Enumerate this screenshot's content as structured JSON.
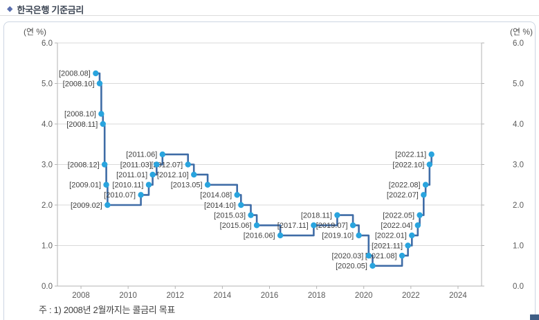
{
  "header": {
    "bullet": "◆",
    "title": "한국은행 기준금리"
  },
  "panel": {
    "unit_left": "(연 %)",
    "unit_right": "(연 %)",
    "footnote": "주 : 1) 2008년 2월까지는 콜금리 목표"
  },
  "colors": {
    "line": "#3f6ca6",
    "marker": "#29a4de",
    "grid": "#d9d9d9",
    "axis": "#b3b3b3",
    "tick_text": "#595959",
    "point_label": "#3f3f3f"
  },
  "chart_data": {
    "type": "line",
    "step": true,
    "title": "한국은행 기준금리",
    "ylabel": "(연 %)",
    "ylim": [
      0.0,
      6.0
    ],
    "yticks": [
      "6.0",
      "5.0",
      "4.0",
      "3.0",
      "2.0",
      "1.0",
      "0.0"
    ],
    "ytick_values": [
      6.0,
      5.0,
      4.0,
      3.0,
      2.0,
      1.0,
      0.0
    ],
    "x_range_years": [
      2007,
      2025
    ],
    "xticks": [
      2008,
      2010,
      2012,
      2014,
      2016,
      2018,
      2020,
      2022,
      2024
    ],
    "grid": true,
    "legend": "none",
    "series": [
      {
        "name": "기준금리",
        "points": [
          {
            "label": "[2008.08]",
            "year": 2008,
            "month": 8,
            "rate": 5.25
          },
          {
            "label": "[2008.10]",
            "year": 2008,
            "month": 10,
            "rate": 5.0
          },
          {
            "label": "[2008.10]",
            "year": 2008,
            "month": 10,
            "rate": 4.25
          },
          {
            "label": "[2008.11]",
            "year": 2008,
            "month": 11,
            "rate": 4.0
          },
          {
            "label": "[2008.12]",
            "year": 2008,
            "month": 12,
            "rate": 3.0
          },
          {
            "label": "[2009.01]",
            "year": 2009,
            "month": 1,
            "rate": 2.5
          },
          {
            "label": "[2009.02]",
            "year": 2009,
            "month": 2,
            "rate": 2.0
          },
          {
            "label": "[2010.07]",
            "year": 2010,
            "month": 7,
            "rate": 2.25
          },
          {
            "label": "[2010.11]",
            "year": 2010,
            "month": 11,
            "rate": 2.5
          },
          {
            "label": "[2011.01]",
            "year": 2011,
            "month": 1,
            "rate": 2.75
          },
          {
            "label": "[2011.03]",
            "year": 2011,
            "month": 3,
            "rate": 3.0
          },
          {
            "label": "[2011.06]",
            "year": 2011,
            "month": 6,
            "rate": 3.25
          },
          {
            "label": "[2012.07]",
            "year": 2012,
            "month": 7,
            "rate": 3.0
          },
          {
            "label": "[2012.10]",
            "year": 2012,
            "month": 10,
            "rate": 2.75
          },
          {
            "label": "[2013.05]",
            "year": 2013,
            "month": 5,
            "rate": 2.5
          },
          {
            "label": "[2014.08]",
            "year": 2014,
            "month": 8,
            "rate": 2.25
          },
          {
            "label": "[2014.10]",
            "year": 2014,
            "month": 10,
            "rate": 2.0
          },
          {
            "label": "[2015.03]",
            "year": 2015,
            "month": 3,
            "rate": 1.75
          },
          {
            "label": "[2015.06]",
            "year": 2015,
            "month": 6,
            "rate": 1.5
          },
          {
            "label": "[2016.06]",
            "year": 2016,
            "month": 6,
            "rate": 1.25
          },
          {
            "label": "[2017.11]",
            "year": 2017,
            "month": 11,
            "rate": 1.5
          },
          {
            "label": "[2018.11]",
            "year": 2018,
            "month": 11,
            "rate": 1.75
          },
          {
            "label": "[2019.07]",
            "year": 2019,
            "month": 7,
            "rate": 1.5
          },
          {
            "label": "[2019.10]",
            "year": 2019,
            "month": 10,
            "rate": 1.25
          },
          {
            "label": "[2020.03]",
            "year": 2020,
            "month": 3,
            "rate": 0.75
          },
          {
            "label": "[2020.05]",
            "year": 2020,
            "month": 5,
            "rate": 0.5
          },
          {
            "label": "[2021.08]",
            "year": 2021,
            "month": 8,
            "rate": 0.75
          },
          {
            "label": "[2021.11]",
            "year": 2021,
            "month": 11,
            "rate": 1.0
          },
          {
            "label": "[2022.01]",
            "year": 2022,
            "month": 1,
            "rate": 1.25
          },
          {
            "label": "[2022.04]",
            "year": 2022,
            "month": 4,
            "rate": 1.5
          },
          {
            "label": "[2022.05]",
            "year": 2022,
            "month": 5,
            "rate": 1.75
          },
          {
            "label": "[2022.07]",
            "year": 2022,
            "month": 7,
            "rate": 2.25
          },
          {
            "label": "[2022.08]",
            "year": 2022,
            "month": 8,
            "rate": 2.5
          },
          {
            "label": "[2022.10]",
            "year": 2022,
            "month": 10,
            "rate": 3.0
          },
          {
            "label": "[2022.11]",
            "year": 2022,
            "month": 11,
            "rate": 3.25
          }
        ]
      }
    ],
    "footnote": "주 : 1) 2008년 2월까지는 콜금리 목표"
  }
}
